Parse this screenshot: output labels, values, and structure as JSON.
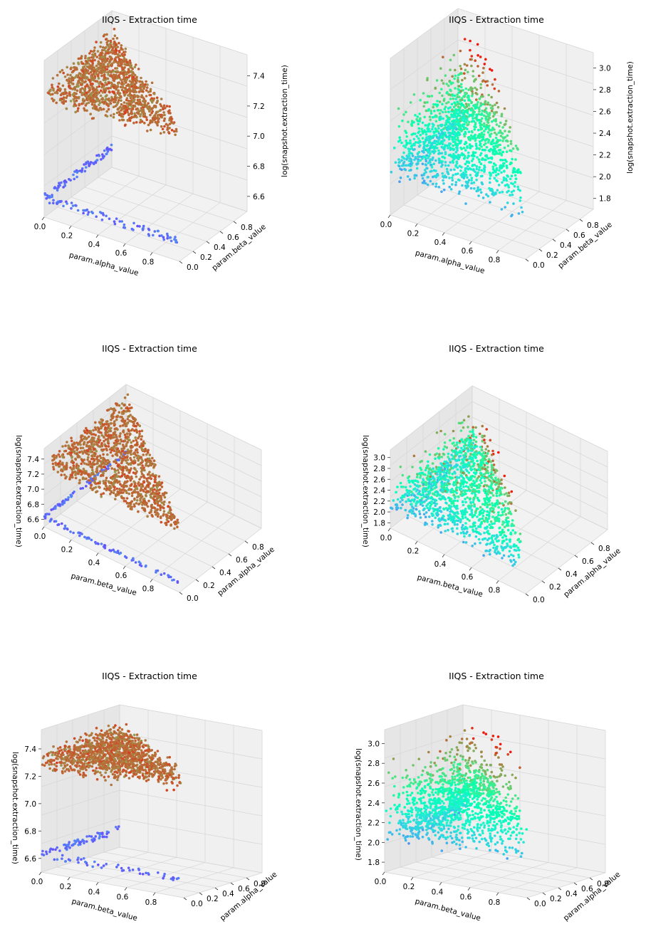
{
  "chart_data": [
    {
      "type": "scatter",
      "title": "IIQS - Extraction time",
      "xlabel": "param.alpha_value",
      "ylabel": "param.beta_value",
      "zlabel": "log(snapshot.extraction_time)",
      "x_ticks": [
        "0.0",
        "0.2",
        "0.4",
        "0.6",
        "0.8"
      ],
      "y_ticks": [
        "0.0",
        "0.2",
        "0.4",
        "0.6",
        "0.8"
      ],
      "z_ticks": [
        "6.6",
        "6.8",
        "7.0",
        "7.2",
        "7.4"
      ],
      "view": "default",
      "colormap": "rainbow",
      "clusters": [
        {
          "region": "simplex alpha+beta<=1",
          "z": [
            7.25,
            7.5
          ],
          "color_range": [
            0.85,
            0.95
          ]
        },
        {
          "region": "alpha=0 edge",
          "z": [
            6.55,
            6.75
          ],
          "color_range": [
            0.1,
            0.2
          ]
        },
        {
          "region": "beta=0 edge",
          "z": [
            6.55,
            6.75
          ],
          "color_range": [
            0.05,
            0.2
          ]
        }
      ]
    },
    {
      "type": "scatter",
      "title": "IIQS - Extraction time",
      "xlabel": "param.alpha_value",
      "ylabel": "param.beta_value",
      "zlabel": "log(snapshot.extraction_time)",
      "x_ticks": [
        "0.0",
        "0.2",
        "0.4",
        "0.6",
        "0.8"
      ],
      "y_ticks": [
        "0.0",
        "0.2",
        "0.4",
        "0.6",
        "0.8"
      ],
      "z_ticks": [
        "1.8",
        "2.0",
        "2.2",
        "2.4",
        "2.6",
        "2.8",
        "3.0"
      ],
      "view": "default",
      "colormap": "rainbow",
      "clusters": [
        {
          "region": "simplex",
          "z": [
            1.7,
            3.0
          ],
          "color_range": [
            0.2,
            0.95
          ]
        }
      ]
    },
    {
      "type": "scatter",
      "title": "IIQS - Extraction time",
      "xlabel": "param.beta_value",
      "ylabel": "param.alpha_value",
      "zlabel": "log(snapshot.extraction_time)",
      "x_ticks": [
        "0.0",
        "0.2",
        "0.4",
        "0.6",
        "0.8"
      ],
      "y_ticks": [
        "0.0",
        "0.2",
        "0.4",
        "0.6",
        "0.8"
      ],
      "z_ticks": [
        "6.6",
        "6.8",
        "7.0",
        "7.2",
        "7.4"
      ],
      "view": "top-down",
      "colormap": "rainbow"
    },
    {
      "type": "scatter",
      "title": "IIQS - Extraction time",
      "xlabel": "param.beta_value",
      "ylabel": "param.alpha_value",
      "zlabel": "log(snapshot.extraction_time)",
      "x_ticks": [
        "0.0",
        "0.2",
        "0.4",
        "0.6",
        "0.8"
      ],
      "y_ticks": [
        "0.0",
        "0.2",
        "0.4",
        "0.6",
        "0.8"
      ],
      "z_ticks": [
        "1.8",
        "2.0",
        "2.2",
        "2.4",
        "2.6",
        "2.8",
        "3.0"
      ],
      "view": "top-down",
      "colormap": "rainbow"
    },
    {
      "type": "scatter",
      "title": "IIQS - Extraction time",
      "xlabel": "param.beta_value",
      "ylabel": "param.alpha_value",
      "zlabel": "log(snapshot.extraction_time)",
      "x_ticks": [
        "0.0",
        "0.2",
        "0.4",
        "0.6",
        "0.8"
      ],
      "y_ticks": [
        "0.0",
        "0.2",
        "0.4",
        "0.6",
        "0.8"
      ],
      "z_ticks": [
        "6.6",
        "6.8",
        "7.0",
        "7.2",
        "7.4"
      ],
      "view": "low-angle",
      "colormap": "rainbow"
    },
    {
      "type": "scatter",
      "title": "IIQS - Extraction time",
      "xlabel": "param.beta_value",
      "ylabel": "param.alpha_value",
      "zlabel": "log(snapshot.extraction_time)",
      "x_ticks": [
        "0.0",
        "0.2",
        "0.4",
        "0.6",
        "0.8"
      ],
      "y_ticks": [
        "0.0",
        "0.2",
        "0.4",
        "0.6",
        "0.8"
      ],
      "z_ticks": [
        "1.8",
        "2.0",
        "2.2",
        "2.4",
        "2.6",
        "2.8",
        "3.0"
      ],
      "view": "low-angle",
      "colormap": "rainbow"
    }
  ]
}
